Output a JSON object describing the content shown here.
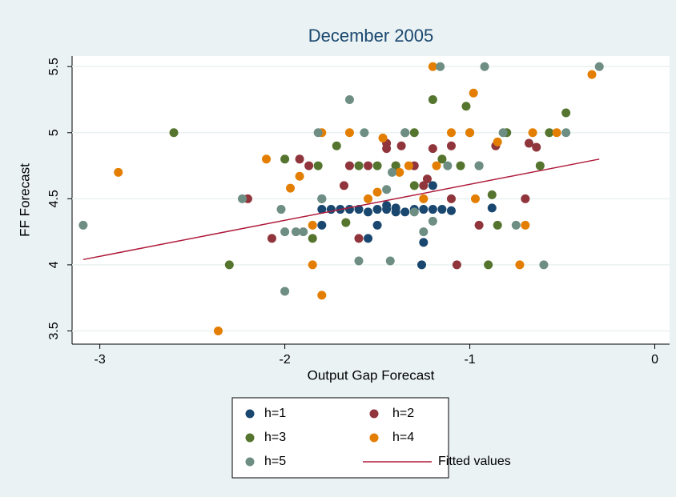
{
  "chart_data": {
    "type": "scatter",
    "title": "December 2005",
    "x_label": "Output Gap Forecast",
    "y_label": "FF Forecast",
    "xlim": [
      -3.15,
      0.08
    ],
    "ylim": [
      3.4,
      5.58
    ],
    "xticks": [
      -3,
      -2,
      -1,
      0
    ],
    "yticks": [
      3.5,
      4,
      4.5,
      5,
      5.5
    ],
    "grid": true,
    "series": [
      {
        "name": "h=1",
        "color": "#1a476f",
        "x": [
          -1.8,
          -1.8,
          -1.75,
          -1.7,
          -1.65,
          -1.6,
          -1.55,
          -1.5,
          -1.45,
          -1.4,
          -1.35,
          -1.3,
          -1.25,
          -1.2,
          -1.15,
          -1.1,
          -1.2,
          -1.25,
          -1.26,
          -1.5,
          -1.55,
          -0.88,
          -1.8,
          -1.45,
          -1.4
        ],
        "values": [
          4.5,
          4.42,
          4.42,
          4.42,
          4.42,
          4.42,
          4.4,
          4.42,
          4.42,
          4.43,
          4.4,
          4.42,
          4.42,
          4.42,
          4.42,
          4.41,
          4.6,
          4.17,
          4.0,
          4.3,
          4.2,
          4.43,
          4.3,
          4.45,
          4.4
        ]
      },
      {
        "name": "h=2",
        "color": "#90353b",
        "x": [
          -2.2,
          -2.07,
          -1.92,
          -1.87,
          -1.68,
          -1.65,
          -1.6,
          -1.55,
          -1.45,
          -1.45,
          -1.37,
          -1.3,
          -1.25,
          -1.23,
          -1.2,
          -1.1,
          -1.07,
          -0.95,
          -0.86,
          -0.7,
          -0.68,
          -0.64,
          -1.4,
          -1.1
        ],
        "values": [
          4.5,
          4.2,
          4.8,
          4.75,
          4.6,
          4.75,
          4.2,
          4.75,
          4.92,
          4.88,
          4.9,
          4.75,
          4.6,
          4.65,
          4.88,
          4.9,
          4.0,
          4.3,
          4.9,
          4.5,
          4.92,
          4.89,
          4.75,
          4.5
        ]
      },
      {
        "name": "h=3",
        "color": "#55752f",
        "x": [
          -2.6,
          -2.3,
          -2.0,
          -1.82,
          -1.85,
          -1.72,
          -1.67,
          -1.6,
          -1.5,
          -1.4,
          -1.35,
          -1.3,
          -1.2,
          -1.15,
          -1.02,
          -1.0,
          -0.95,
          -0.9,
          -0.88,
          -0.85,
          -0.8,
          -0.62,
          -0.57,
          -0.48,
          -1.3,
          -1.05
        ],
        "values": [
          5.0,
          4.0,
          4.8,
          4.75,
          4.2,
          4.9,
          4.32,
          4.75,
          4.75,
          4.75,
          5.0,
          5.0,
          5.25,
          4.8,
          5.2,
          5.0,
          4.75,
          4.0,
          4.53,
          4.3,
          5.0,
          4.75,
          5.0,
          5.15,
          4.6,
          4.75
        ]
      },
      {
        "name": "h=4",
        "color": "#e37e00",
        "x": [
          -2.9,
          -2.36,
          -2.1,
          -1.97,
          -1.92,
          -1.85,
          -1.85,
          -1.8,
          -1.8,
          -1.65,
          -1.55,
          -1.5,
          -1.47,
          -1.38,
          -1.33,
          -1.25,
          -1.2,
          -1.18,
          -1.1,
          -1.0,
          -0.98,
          -0.97,
          -0.85,
          -0.73,
          -0.7,
          -0.66,
          -0.53,
          -0.34
        ],
        "values": [
          4.7,
          3.5,
          4.8,
          4.58,
          4.67,
          4.3,
          4.0,
          3.77,
          5.0,
          5.0,
          4.5,
          4.55,
          4.96,
          4.7,
          4.75,
          4.5,
          5.5,
          4.75,
          5.0,
          5.0,
          5.3,
          4.5,
          4.93,
          4.0,
          4.3,
          5.0,
          5.0,
          5.44
        ]
      },
      {
        "name": "h=5",
        "color": "#6e8e84",
        "x": [
          -3.09,
          -2.23,
          -2.02,
          -2.0,
          -2.0,
          -1.94,
          -1.9,
          -1.8,
          -1.82,
          -1.65,
          -1.6,
          -1.57,
          -1.43,
          -1.45,
          -1.42,
          -1.35,
          -1.3,
          -1.25,
          -1.2,
          -1.16,
          -1.12,
          -0.92,
          -0.95,
          -0.82,
          -0.75,
          -0.6,
          -0.48,
          -0.3
        ],
        "values": [
          4.3,
          4.5,
          4.42,
          4.25,
          3.8,
          4.25,
          4.25,
          4.5,
          5.0,
          5.25,
          4.03,
          5.0,
          4.03,
          4.57,
          4.7,
          5.0,
          4.4,
          4.25,
          4.33,
          5.5,
          4.75,
          5.5,
          4.75,
          5.0,
          4.3,
          4.0,
          5.0,
          5.5
        ]
      },
      {
        "name": "Fitted values",
        "color": "#b01c3c",
        "mode": "line",
        "x": [
          -3.09,
          -0.3
        ],
        "values": [
          4.04,
          4.8
        ]
      }
    ]
  }
}
